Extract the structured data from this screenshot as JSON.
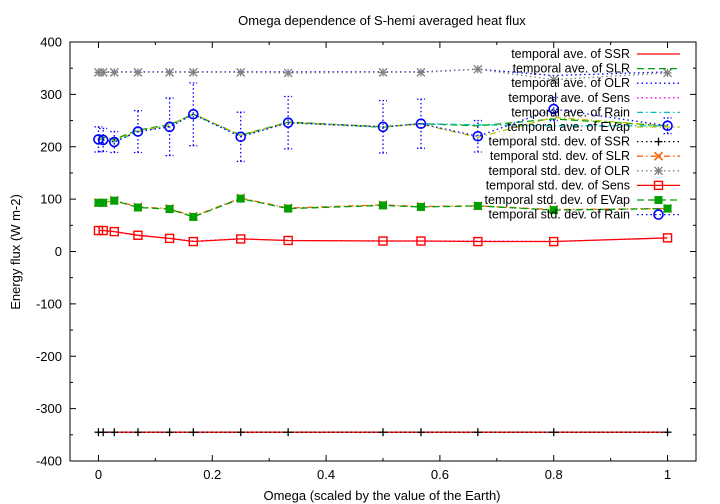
{
  "chart_data": {
    "type": "line",
    "title": "Omega dependence of S-hemi averaged heat flux",
    "xlabel": "Omega (scaled by the value of the Earth)",
    "ylabel": "Energy flux (W m-2)",
    "xlim": [
      -0.05,
      1.05
    ],
    "ylim": [
      -400,
      400
    ],
    "xticks": [
      "0",
      "0.2",
      "0.4",
      "0.6",
      "0.8",
      "1"
    ],
    "yticks": [
      "-400",
      "-300",
      "-200",
      "-100",
      "0",
      "100",
      "200",
      "300",
      "400"
    ],
    "grid": false,
    "legend_position": "top-right",
    "x": [
      0,
      0.0083,
      0.0278,
      0.0694,
      0.125,
      0.1667,
      0.25,
      0.3333,
      0.5,
      0.5667,
      0.6667,
      0.8,
      1.0
    ],
    "series": [
      {
        "name": "temporal ave. of SSR",
        "color": "#ff0000",
        "style": "solid",
        "marker": "none",
        "values": [
          -345,
          -345,
          -345,
          -345,
          -345,
          -345,
          -345,
          -345,
          -345,
          -345,
          -345,
          -345,
          -345
        ]
      },
      {
        "name": "temporal ave. of SLR",
        "color": "#00a000",
        "style": "dash",
        "marker": "none",
        "values": [
          220,
          218,
          214,
          232,
          242,
          262,
          222,
          247,
          238,
          244,
          240,
          253,
          240
        ]
      },
      {
        "name": "temporal ave. of OLR",
        "color": "#0000ff",
        "style": "dot",
        "marker": "none",
        "values": [
          343,
          343,
          343,
          343,
          343,
          343,
          343,
          343,
          343,
          343,
          348,
          336,
          343
        ]
      },
      {
        "name": "temporal ave. of Sens",
        "color": "#ff00ff",
        "style": "dot",
        "marker": "none",
        "values": [
          40,
          40,
          38,
          31,
          25,
          20,
          24,
          21,
          20,
          20,
          20,
          19,
          26
        ]
      },
      {
        "name": "temporal ave. of Rain",
        "color": "#00c0c0",
        "style": "dashdot",
        "marker": "none",
        "values": [
          214,
          213,
          209,
          229,
          240,
          262,
          221,
          246,
          237,
          244,
          242,
          240,
          240
        ]
      },
      {
        "name": "temporal ave. of EVap",
        "color": "#c0c000",
        "style": "dashdot",
        "marker": "none",
        "values": [
          216,
          215,
          211,
          230,
          241,
          263,
          222,
          246,
          238,
          243,
          218,
          256,
          240
        ]
      },
      {
        "name": "temporal std. dev. of SSR",
        "color": "#000000",
        "style": "dot",
        "marker": "plus",
        "values": [
          -345,
          -345,
          -345,
          -345,
          -345,
          -345,
          -345,
          -345,
          -345,
          -345,
          -345,
          -345,
          -345
        ]
      },
      {
        "name": "temporal std. dev. of SLR",
        "color": "#ff6000",
        "style": "dashdot",
        "marker": "cross",
        "values": [
          93,
          93,
          98,
          85,
          82,
          67,
          102,
          83,
          89,
          86,
          87,
          80,
          82
        ]
      },
      {
        "name": "temporal std. dev. of OLR",
        "color": "#808080",
        "style": "dot",
        "marker": "star",
        "values": [
          342,
          342,
          342,
          342,
          342,
          342,
          342,
          341,
          342,
          342,
          348,
          328,
          341
        ]
      },
      {
        "name": "temporal std. dev. of Sens",
        "color": "#ff0000",
        "style": "solid",
        "marker": "square",
        "values": [
          40,
          40,
          38,
          31,
          25,
          19,
          24,
          21,
          20,
          20,
          19,
          19,
          26
        ]
      },
      {
        "name": "temporal std. dev. of EVap",
        "color": "#00a000",
        "style": "dash",
        "marker": "filled-square",
        "values": [
          93,
          93,
          97,
          84,
          81,
          66,
          101,
          82,
          88,
          85,
          87,
          79,
          82
        ]
      },
      {
        "name": "temporal std. dev. of Rain",
        "color": "#0000ff",
        "style": "dot",
        "marker": "circle",
        "values": [
          214,
          213,
          209,
          229,
          238,
          262,
          219,
          246,
          238,
          244,
          220,
          272,
          240
        ],
        "error": [
          24,
          22,
          20,
          40,
          55,
          60,
          47,
          50,
          50,
          47,
          30,
          22,
          15
        ]
      }
    ]
  }
}
